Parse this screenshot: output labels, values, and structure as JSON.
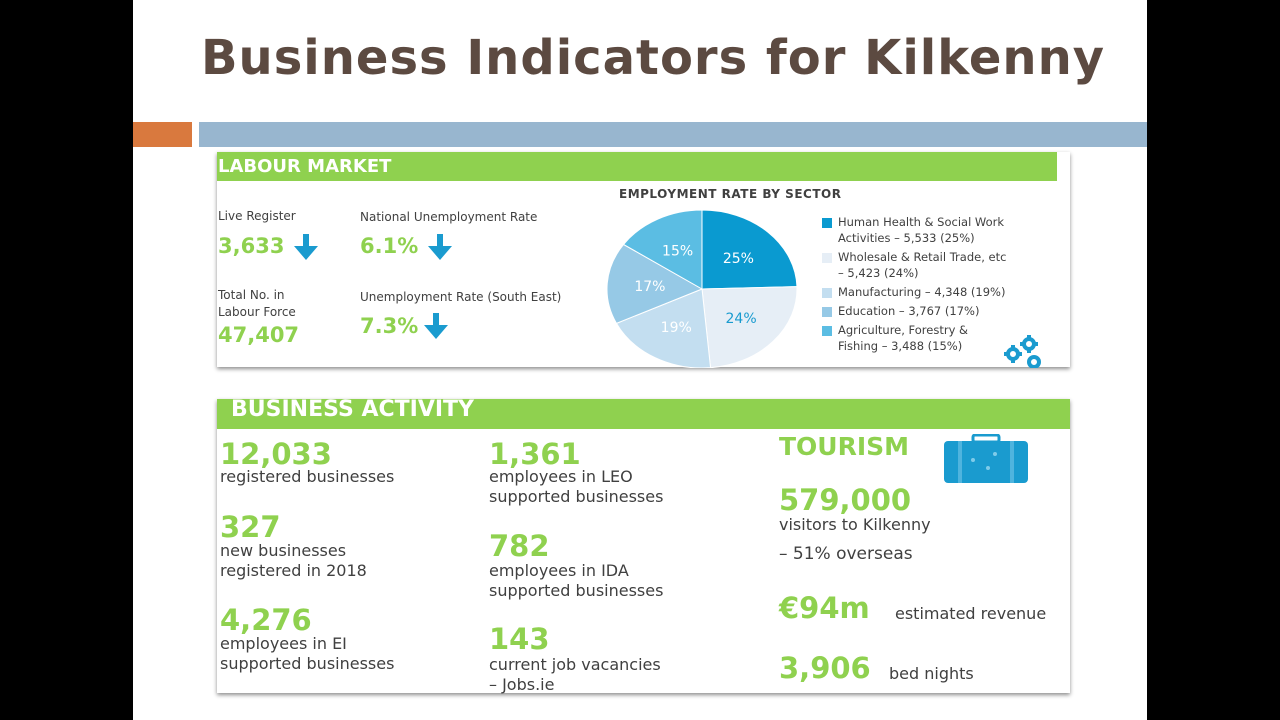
{
  "title": "Business Indicators for Kilkenny",
  "colors": {
    "green": "#8fd14f",
    "orange": "#d9793e",
    "blue_bar": "#98b6cf",
    "title": "#5c4a41",
    "arrow": "#1a9bcf"
  },
  "labour": {
    "header": "LABOUR MARKET",
    "live_register_label": "Live Register",
    "live_register_value": "3,633",
    "national_rate_label": "National Unemployment Rate",
    "national_rate_value": "6.1%",
    "labour_force_label1": "Total No. in",
    "labour_force_label2": "Labour Force",
    "labour_force_value": "47,407",
    "se_rate_label": "Unemployment Rate (South East)",
    "se_rate_value": "7.3%",
    "trend_icon": "arrow-down-icon"
  },
  "chart_data": {
    "type": "pie",
    "title": "EMPLOYMENT RATE BY SECTOR",
    "slices": [
      {
        "label": "Human Health & Social Work Activities – 5,533 (25%)",
        "line1": "Human Health & Social Work",
        "line2": "Activities – 5,533 (25%)",
        "value": 5533,
        "percent": 25,
        "percent_label": "25%",
        "color": "#0a9ad0",
        "label_color": "#ffffff"
      },
      {
        "label": "Wholesale & Retail Trade, etc – 5,423 (24%)",
        "line1": "Wholesale & Retail Trade, etc",
        "line2": "– 5,423 (24%)",
        "value": 5423,
        "percent": 24,
        "percent_label": "24%",
        "color": "#e6eef6",
        "label_color": "#1a9bcf"
      },
      {
        "label": "Manufacturing – 4,348 (19%)",
        "line1": "Manufacturing – 4,348 (19%)",
        "line2": "",
        "value": 4348,
        "percent": 19,
        "percent_label": "19%",
        "color": "#c3def0",
        "label_color": "#ffffff"
      },
      {
        "label": "Education – 3,767 (17%)",
        "line1": "Education – 3,767 (17%)",
        "line2": "",
        "value": 3767,
        "percent": 17,
        "percent_label": "17%",
        "color": "#96c9e6",
        "label_color": "#ffffff"
      },
      {
        "label": "Agriculture, Forestry & Fishing – 3,488 (15%)",
        "line1": "Agriculture, Forestry &",
        "line2": "Fishing – 3,488 (15%)",
        "value": 3488,
        "percent": 15,
        "percent_label": "15%",
        "color": "#5bbde3",
        "label_color": "#ffffff"
      }
    ]
  },
  "business": {
    "header": "BUSINESS ACTIVITY",
    "stats_left": [
      {
        "value": "12,033",
        "label1": "registered businesses",
        "label2": ""
      },
      {
        "value": "327",
        "label1": "new businesses",
        "label2": "registered in 2018"
      },
      {
        "value": "4,276",
        "label1": "employees in EI",
        "label2": "supported businesses"
      }
    ],
    "stats_mid": [
      {
        "value": "1,361",
        "label1": "employees in LEO",
        "label2": "supported businesses"
      },
      {
        "value": "782",
        "label1": "employees in IDA",
        "label2": "supported businesses"
      },
      {
        "value": "143",
        "label1": "current job vacancies",
        "label2": "– Jobs.ie"
      }
    ]
  },
  "tourism": {
    "title": "TOURISM",
    "icon": "suitcase-icon",
    "visitors_value": "579,000",
    "visitors_label": "visitors to Kilkenny",
    "overseas_label": "– 51% overseas",
    "revenue_value": "€94m",
    "revenue_label": "estimated revenue",
    "bed_value": "3,906",
    "bed_label": "bed nights"
  }
}
